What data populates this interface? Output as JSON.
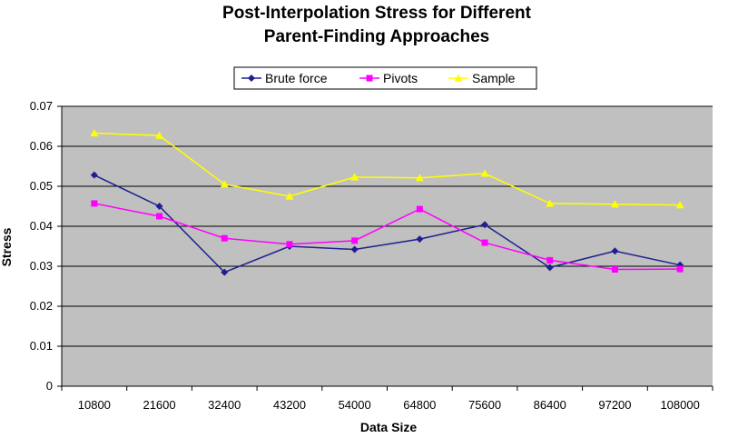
{
  "chart_data": {
    "type": "line",
    "title_lines": [
      "Post-Interpolation Stress for Different",
      "Parent-Finding Approaches"
    ],
    "xlabel": "Data Size",
    "ylabel": "Stress",
    "categories": [
      "10800",
      "21600",
      "32400",
      "43200",
      "54000",
      "64800",
      "75600",
      "86400",
      "97200",
      "108000"
    ],
    "ylim": [
      0,
      0.07
    ],
    "yticks": [
      0,
      0.01,
      0.02,
      0.03,
      0.04,
      0.05,
      0.06,
      0.07
    ],
    "ytick_labels": [
      "0",
      "0.01",
      "0.02",
      "0.03",
      "0.04",
      "0.05",
      "0.06",
      "0.07"
    ],
    "grid": true,
    "legend_position": "top",
    "series": [
      {
        "name": "Brute force",
        "color": "#1f1f8f",
        "marker": "diamond",
        "values": [
          0.0528,
          0.045,
          0.0285,
          0.035,
          0.0342,
          0.0368,
          0.0404,
          0.0297,
          0.0338,
          0.0303
        ]
      },
      {
        "name": "Pivots",
        "color": "#ff00ff",
        "marker": "square",
        "values": [
          0.0457,
          0.0425,
          0.037,
          0.0355,
          0.0364,
          0.0443,
          0.0359,
          0.0315,
          0.0292,
          0.0293
        ]
      },
      {
        "name": "Sample",
        "color": "#ffff00",
        "marker": "triangle",
        "values": [
          0.0633,
          0.0627,
          0.0505,
          0.0475,
          0.0523,
          0.0521,
          0.0532,
          0.0457,
          0.0455,
          0.0453
        ]
      }
    ]
  }
}
